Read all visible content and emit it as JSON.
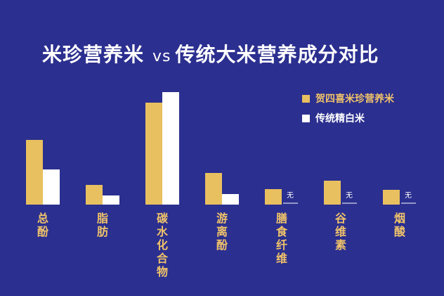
{
  "title": {
    "part1": "米珍营养米",
    "vs": "vs",
    "part2": "传统大米营养成分对比"
  },
  "colors": {
    "background": "#2b2f8f",
    "series1": "#e8c060",
    "series2": "#ffffff",
    "category_label": "#f0c36a"
  },
  "chart_data": {
    "type": "bar",
    "categories": [
      "总酚",
      "脂肪",
      "碳水化合物",
      "游离酚",
      "膳食纤维",
      "谷维素",
      "烟酸"
    ],
    "series": [
      {
        "name": "贺四喜米珍营养米",
        "values": [
          92,
          28,
          145,
          45,
          22,
          34,
          21
        ]
      },
      {
        "name": "传统精白米",
        "values": [
          50,
          13,
          160,
          15,
          0,
          0,
          0
        ]
      }
    ],
    "none_label": "无",
    "legend_position": "top-right",
    "grid": false
  }
}
